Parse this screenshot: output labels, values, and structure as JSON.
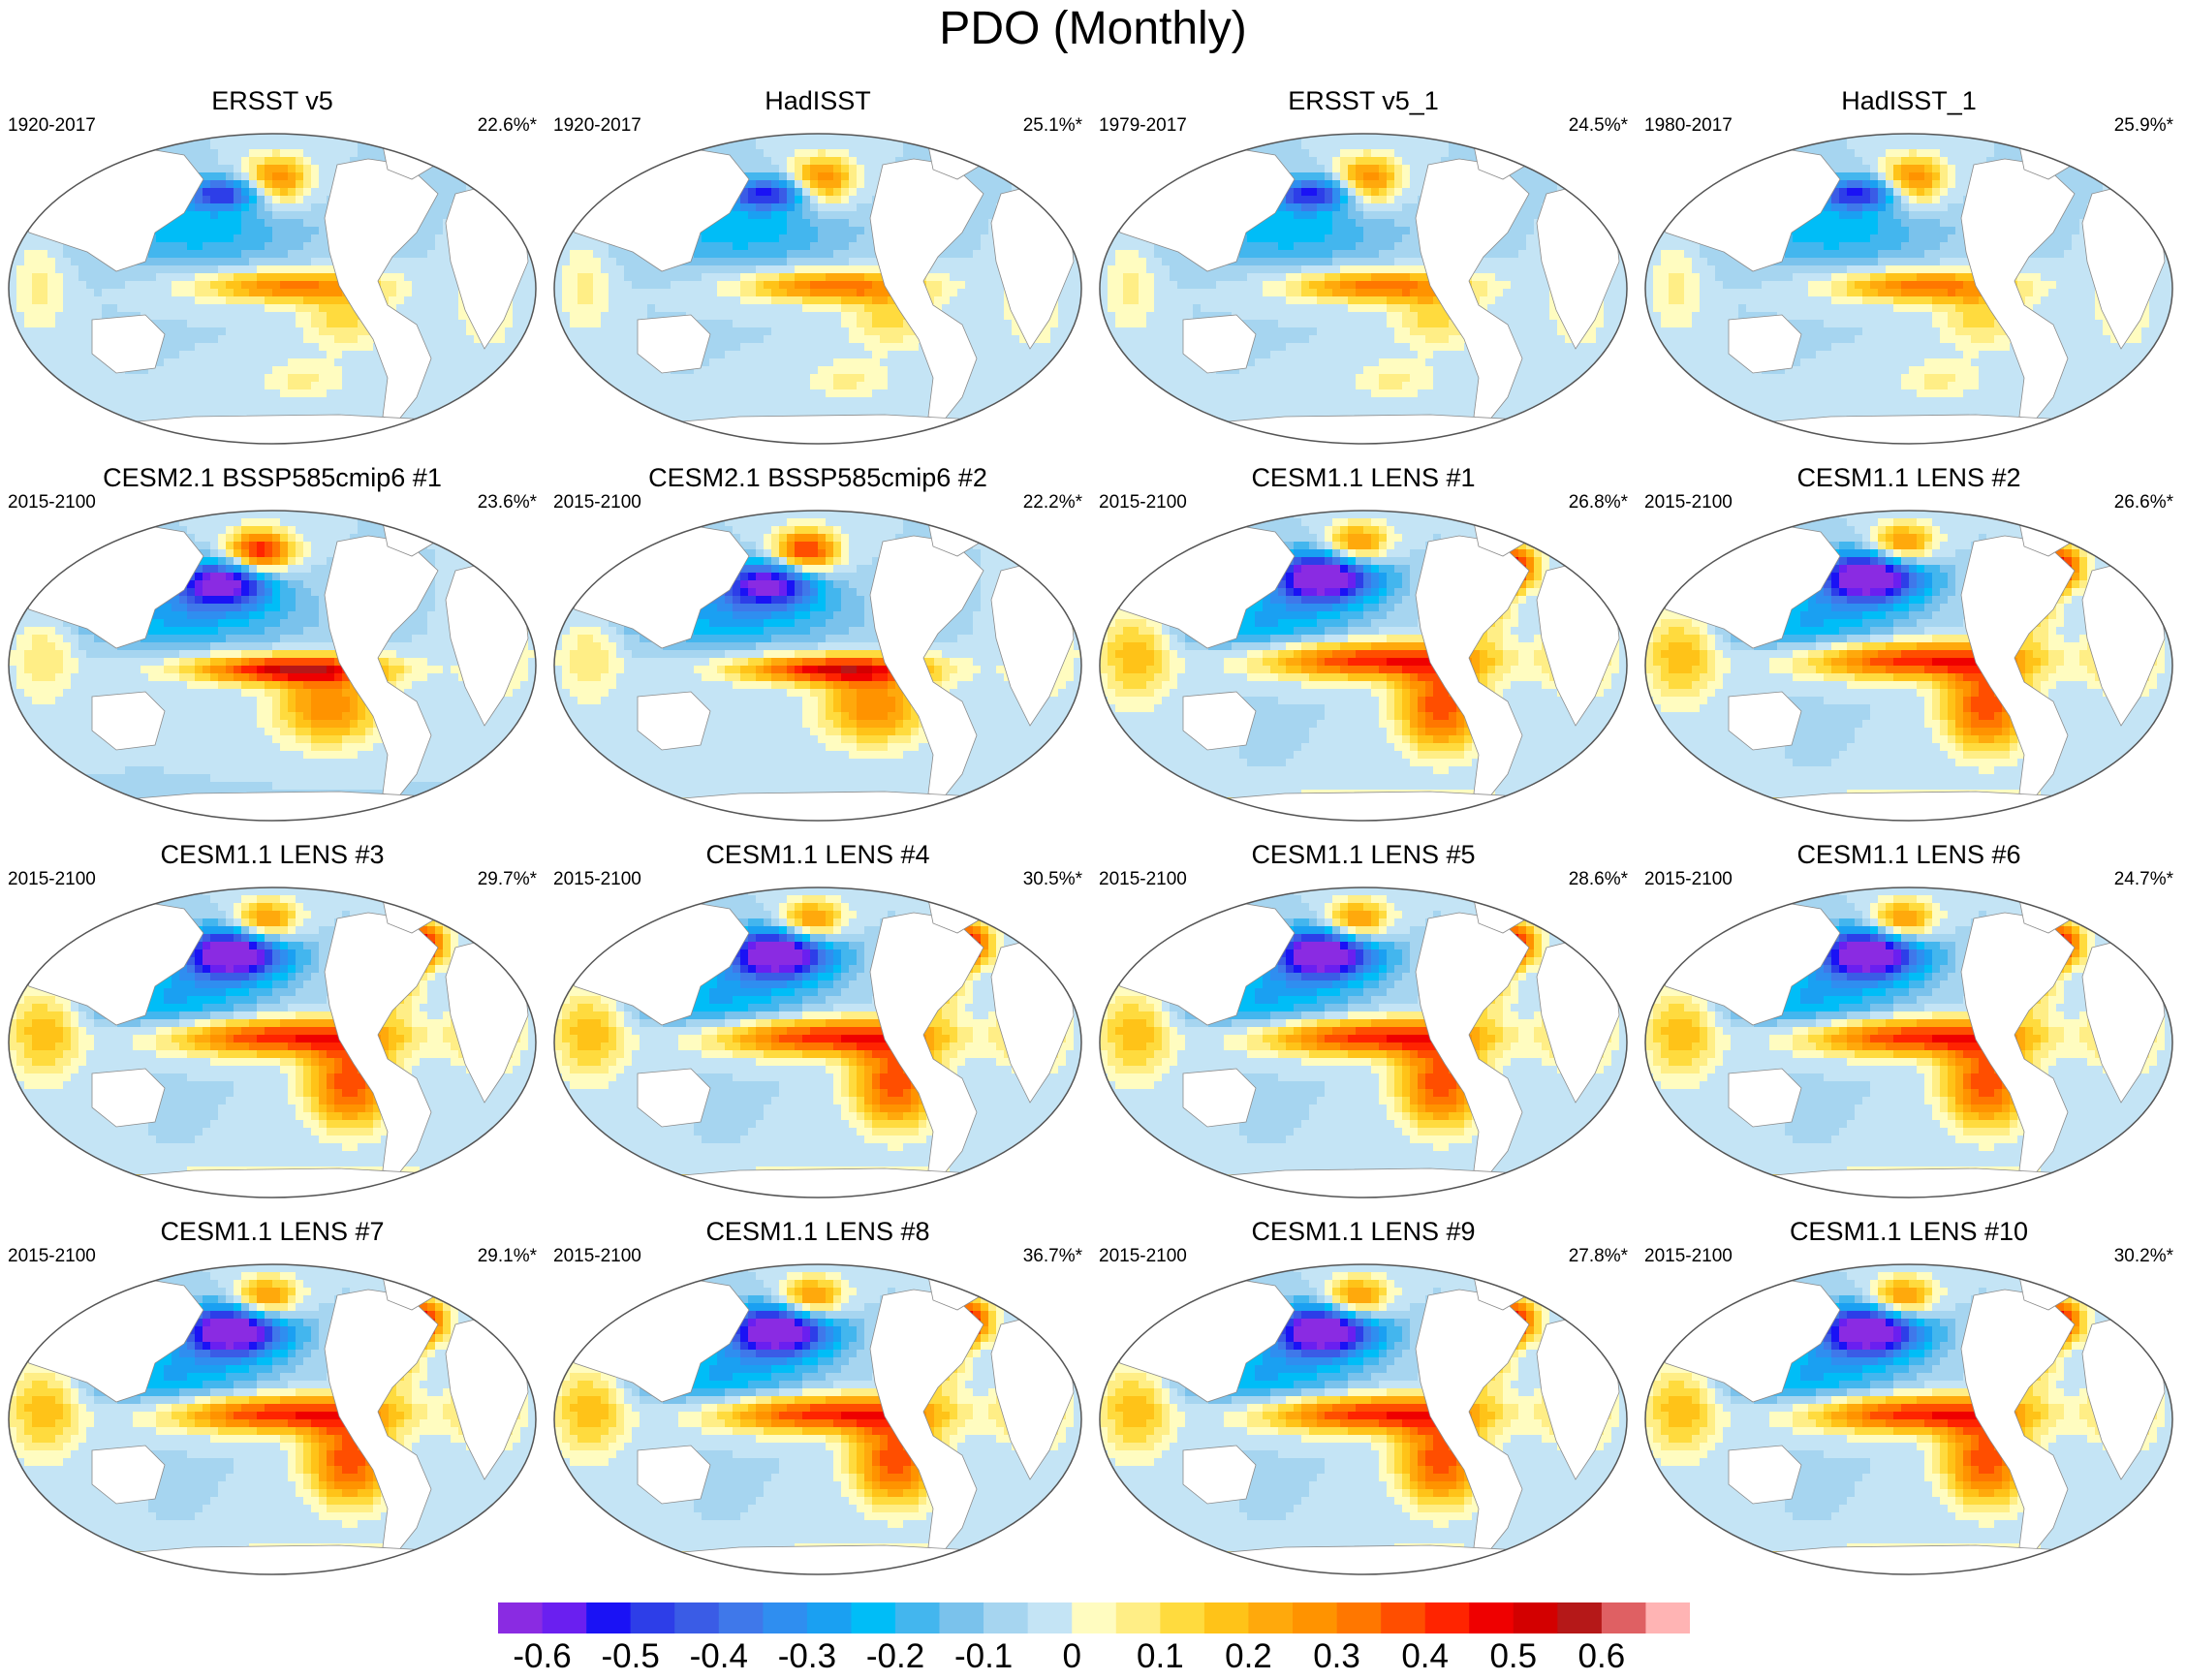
{
  "title": "PDO (Monthly)",
  "panels": [
    {
      "title": "ERSST v5",
      "period": "1920-2017",
      "variance": "22.6%*",
      "pattern": "obs",
      "strength": 0.75,
      "southern_ocean": 0.0
    },
    {
      "title": "HadISST",
      "period": "1920-2017",
      "variance": "25.1%*",
      "pattern": "obs",
      "strength": 0.8,
      "southern_ocean": 0.0
    },
    {
      "title": "ERSST v5_1",
      "period": "1979-2017",
      "variance": "24.5%*",
      "pattern": "obs",
      "strength": 0.8,
      "southern_ocean": 0.1
    },
    {
      "title": "HadISST_1",
      "period": "1980-2017",
      "variance": "25.9%*",
      "pattern": "obs",
      "strength": 0.8,
      "southern_ocean": 0.05
    },
    {
      "title": "CESM2.1 BSSP585cmip6 #1",
      "period": "2015-2100",
      "variance": "23.6%*",
      "pattern": "cesm2",
      "strength": 0.95,
      "southern_ocean": -0.1
    },
    {
      "title": "CESM2.1 BSSP585cmip6 #2",
      "period": "2015-2100",
      "variance": "22.2%*",
      "pattern": "cesm2",
      "strength": 0.9,
      "southern_ocean": 0.25
    },
    {
      "title": "CESM1.1 LENS #1",
      "period": "2015-2100",
      "variance": "26.8%*",
      "pattern": "lens",
      "strength": 1.0,
      "southern_ocean": 0.55
    },
    {
      "title": "CESM1.1 LENS #2",
      "period": "2015-2100",
      "variance": "26.6%*",
      "pattern": "lens",
      "strength": 1.0,
      "southern_ocean": 0.55
    },
    {
      "title": "CESM1.1 LENS #3",
      "period": "2015-2100",
      "variance": "29.7%*",
      "pattern": "lens",
      "strength": 1.0,
      "southern_ocean": 0.6
    },
    {
      "title": "CESM1.1 LENS #4",
      "period": "2015-2100",
      "variance": "30.5%*",
      "pattern": "lens",
      "strength": 1.0,
      "southern_ocean": 0.55
    },
    {
      "title": "CESM1.1 LENS #5",
      "period": "2015-2100",
      "variance": "28.6%*",
      "pattern": "lens",
      "strength": 1.0,
      "southern_ocean": 0.35
    },
    {
      "title": "CESM1.1 LENS #6",
      "period": "2015-2100",
      "variance": "24.7%*",
      "pattern": "lens",
      "strength": 1.0,
      "southern_ocean": 0.55
    },
    {
      "title": "CESM1.1 LENS #7",
      "period": "2015-2100",
      "variance": "29.1%*",
      "pattern": "lens",
      "strength": 1.0,
      "southern_ocean": 0.5
    },
    {
      "title": "CESM1.1 LENS #8",
      "period": "2015-2100",
      "variance": "36.7%*",
      "pattern": "lens",
      "strength": 1.0,
      "southern_ocean": 0.5
    },
    {
      "title": "CESM1.1 LENS #9",
      "period": "2015-2100",
      "variance": "27.8%*",
      "pattern": "lens",
      "strength": 1.0,
      "southern_ocean": 0.45
    },
    {
      "title": "CESM1.1 LENS #10",
      "period": "2015-2100",
      "variance": "30.2%*",
      "pattern": "lens",
      "strength": 1.0,
      "southern_ocean": 0.55
    }
  ],
  "colorbar": {
    "colors": [
      "#8a2be2",
      "#6a1ff0",
      "#1a12f5",
      "#2d3ee8",
      "#3a5ce6",
      "#3f78ea",
      "#2f8ef0",
      "#1aa0f2",
      "#00bdf7",
      "#43b6ee",
      "#7ac2ec",
      "#a6d5f0",
      "#c4e4f5",
      "#fffcc0",
      "#ffee86",
      "#ffdb3e",
      "#ffc318",
      "#ffa90c",
      "#ff9300",
      "#ff7700",
      "#ff4e00",
      "#ff2400",
      "#ef0000",
      "#d30000",
      "#b51818",
      "#df6063",
      "#ffb4b4"
    ],
    "tick_labels": [
      "-0.6",
      "-0.5",
      "-0.4",
      "-0.3",
      "-0.2",
      "-0.1",
      "0",
      "0.1",
      "0.2",
      "0.3",
      "0.4",
      "0.5",
      "0.6"
    ],
    "min": -0.65,
    "max": 0.7,
    "step": 0.05
  }
}
